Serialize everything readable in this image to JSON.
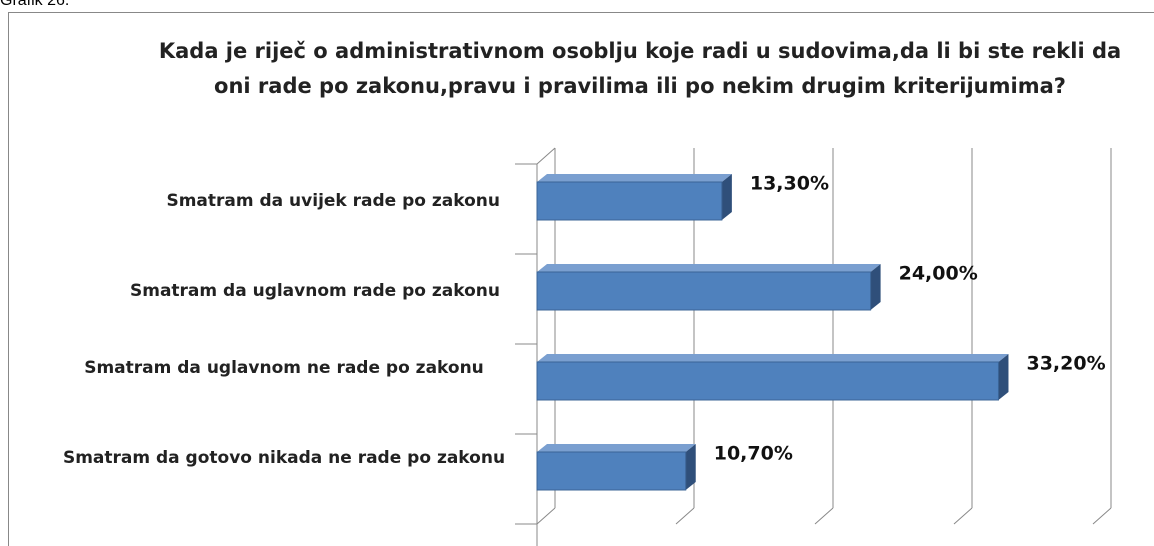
{
  "caption": "Grafik 26.",
  "chart_data": {
    "type": "bar3d_horizontal",
    "title": "Kada je riječ o administrativnom osoblju koje radi u sudovima,da li bi ste rekli da oni  rade po zakonu,pravu i pravilima ili po nekim drugim kriterijumima?",
    "categories": [
      "Smatram da uvijek rade po zakonu",
      "Smatram da uglavnom rade po zakonu",
      "Smatram da uglavnom ne rade po zakonu",
      "Smatram da gotovo nikada ne rade po zakonu"
    ],
    "values": [
      13.3,
      24.0,
      33.2,
      10.7
    ],
    "value_labels": [
      "13,30%",
      "24,00%",
      "33,20%",
      "10,70%"
    ],
    "color": "#4f81bd",
    "xlim": [
      0,
      40
    ],
    "xticks": [
      0,
      10,
      20,
      30,
      40
    ],
    "grid": true
  }
}
